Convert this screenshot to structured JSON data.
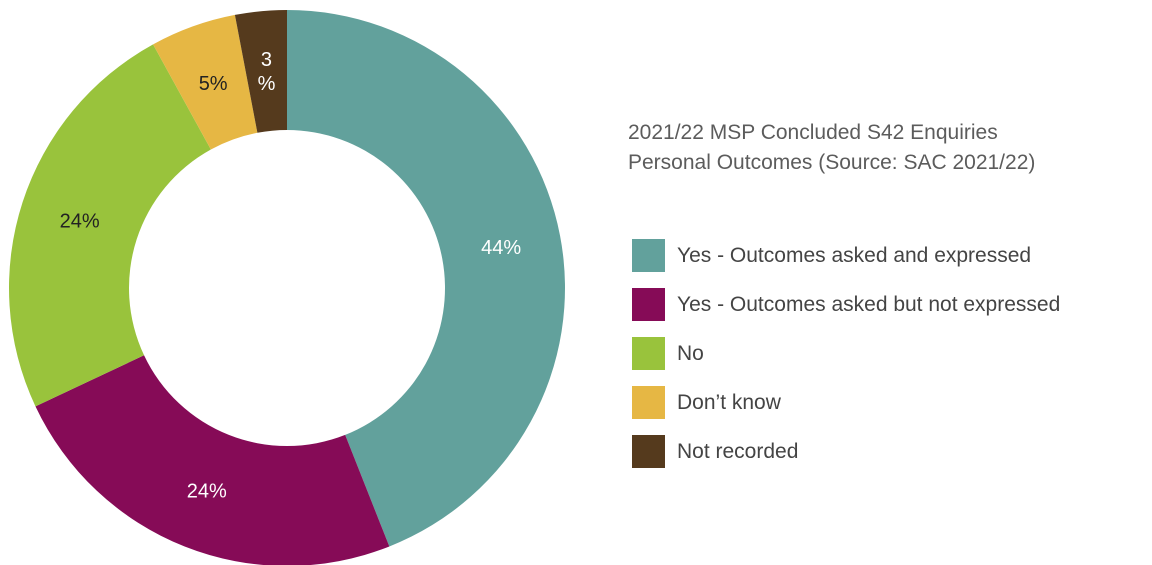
{
  "chart_data": {
    "type": "pie",
    "donut": true,
    "title": "2021/22 MSP Concluded S42 Enquiries",
    "subtitle": "Personal Outcomes (Source: SAC 2021/22)",
    "legend_placement": "right",
    "slices": [
      {
        "name": "Yes - Outcomes asked and expressed",
        "value": 44,
        "label": "44%",
        "color": "#62a19c",
        "label_color": "#ffffff"
      },
      {
        "name": "Yes - Outcomes asked but not expressed",
        "value": 24,
        "label": "24%",
        "color": "#860b57",
        "label_color": "#ffffff"
      },
      {
        "name": "No",
        "value": 24,
        "label": "24%",
        "color": "#99c33c",
        "label_color": "#222222"
      },
      {
        "name": "Don’t know",
        "value": 5,
        "label": "5%",
        "color": "#e6b744",
        "label_color": "#222222"
      },
      {
        "name": "Not recorded",
        "value": 3,
        "label": "3\n%",
        "color": "#553a1d",
        "label_color": "#ffffff"
      }
    ]
  }
}
